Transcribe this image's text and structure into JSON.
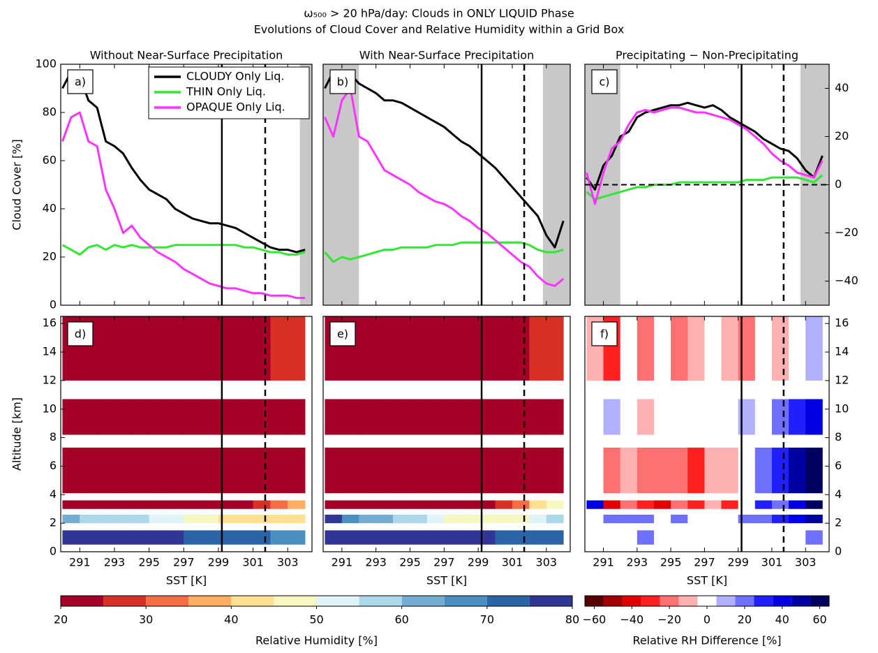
{
  "title": [
    "ω₅₀₀ > 20 hPa/day:  Clouds in ONLY LIQUID Phase",
    "Evolutions of Cloud Cover and Relative Humidity within a Grid Box"
  ],
  "chart_data": [
    {
      "type": "line",
      "panel": "a)",
      "title": "Without Near-Surface Precipitation",
      "ylabel": "Cloud Cover [%]",
      "x": [
        290,
        290.5,
        291,
        291.5,
        292,
        292.5,
        293,
        293.5,
        294,
        294.5,
        295,
        295.5,
        296,
        296.5,
        297,
        297.5,
        298,
        298.5,
        299,
        299.5,
        300,
        300.5,
        301,
        301.5,
        302,
        302.5,
        303,
        303.5,
        304
      ],
      "xlim": [
        289.9,
        304.4
      ],
      "xticks": [
        291,
        293,
        295,
        297,
        299,
        301,
        303
      ],
      "ylim": [
        0,
        100
      ],
      "yticks": [
        0,
        20,
        40,
        60,
        80,
        100
      ],
      "series": [
        {
          "name": "CLOUDY Only Liq.",
          "color": "#000000",
          "values": [
            90,
            97,
            95,
            85,
            82,
            68,
            66,
            63,
            57,
            52,
            48,
            46,
            44,
            40,
            38,
            36,
            35,
            34,
            34,
            33,
            32,
            30,
            28,
            26,
            24,
            23,
            23,
            22,
            23
          ]
        },
        {
          "name": "THIN Only Liq.",
          "color": "#33e633",
          "values": [
            25,
            23,
            21,
            24,
            25,
            23,
            25,
            24,
            25,
            24,
            24,
            24,
            24,
            25,
            25,
            25,
            25,
            25,
            25,
            25,
            25,
            24,
            24,
            23,
            22,
            22,
            21,
            21,
            22
          ]
        },
        {
          "name": "OPAQUE Only Liq.",
          "color": "#ff33ff",
          "values": [
            68,
            78,
            80,
            68,
            66,
            48,
            40,
            30,
            33,
            28,
            25,
            22,
            20,
            18,
            15,
            13,
            11,
            9,
            8,
            7,
            7,
            6,
            5,
            5,
            4,
            4,
            4,
            3,
            3
          ]
        }
      ],
      "vlines": [
        {
          "x": 299.2,
          "style": "solid"
        },
        {
          "x": 301.7,
          "style": "dashed"
        }
      ],
      "shaded": [
        [
          303.7,
          304.4
        ]
      ],
      "legend": "upper right"
    },
    {
      "type": "line",
      "panel": "b)",
      "title": "With Near-Surface Precipitation",
      "x": [
        290,
        290.5,
        291,
        291.5,
        292,
        292.5,
        293,
        293.5,
        294,
        294.5,
        295,
        295.5,
        296,
        296.5,
        297,
        297.5,
        298,
        298.5,
        299,
        299.5,
        300,
        300.5,
        301,
        301.5,
        302,
        302.5,
        303,
        303.5,
        304
      ],
      "xlim": [
        289.9,
        304.4
      ],
      "xticks": [
        291,
        293,
        295,
        297,
        299,
        301,
        303
      ],
      "ylim": [
        0,
        100
      ],
      "series": [
        {
          "color": "#000000",
          "values": [
            90,
            97,
            97,
            96,
            92,
            90,
            88,
            85,
            85,
            84,
            82,
            80,
            78,
            76,
            74,
            71,
            68,
            66,
            63,
            60,
            57,
            53,
            49,
            45,
            41,
            37,
            29,
            24,
            35
          ]
        },
        {
          "color": "#33e633",
          "values": [
            22,
            18,
            20,
            19,
            20,
            21,
            22,
            23,
            23,
            24,
            24,
            24,
            24,
            25,
            25,
            25,
            26,
            26,
            26,
            26,
            26,
            26,
            26,
            26,
            25,
            23,
            22,
            22,
            23
          ]
        },
        {
          "color": "#ff33ff",
          "values": [
            78,
            70,
            85,
            90,
            70,
            68,
            62,
            56,
            54,
            52,
            50,
            47,
            45,
            43,
            42,
            40,
            37,
            35,
            32,
            30,
            27,
            24,
            21,
            18,
            16,
            12,
            9,
            8,
            11
          ]
        }
      ],
      "vlines": [
        {
          "x": 299.2,
          "style": "solid"
        },
        {
          "x": 301.7,
          "style": "dashed"
        }
      ],
      "shaded": [
        [
          289.9,
          292
        ],
        [
          302.8,
          304.4
        ]
      ]
    },
    {
      "type": "line",
      "panel": "c)",
      "title": "Precipitating − Non-Precipitating",
      "x": [
        290,
        290.5,
        291,
        291.5,
        292,
        292.5,
        293,
        293.5,
        294,
        294.5,
        295,
        295.5,
        296,
        296.5,
        297,
        297.5,
        298,
        298.5,
        299,
        299.5,
        300,
        300.5,
        301,
        301.5,
        302,
        302.5,
        303,
        303.5,
        304
      ],
      "xlim": [
        289.9,
        304.4
      ],
      "xticks": [
        291,
        293,
        295,
        297,
        299,
        301,
        303
      ],
      "y2lim": [
        -50,
        50
      ],
      "y2ticks": [
        {
          "value": -40,
          "label": "−40"
        },
        {
          "value": -20,
          "label": "−20"
        },
        0,
        20,
        40
      ],
      "series": [
        {
          "color": "#000000",
          "axis": "y2",
          "values": [
            3,
            -2,
            8,
            12,
            20,
            22,
            28,
            30,
            31,
            32,
            33,
            33,
            34,
            33,
            32,
            33,
            31,
            28,
            26,
            24,
            22,
            19,
            17,
            15,
            14,
            11,
            6,
            3,
            12
          ]
        },
        {
          "color": "#33e633",
          "axis": "y2",
          "values": [
            -3,
            -6,
            -5,
            -4,
            -3,
            -2,
            -1,
            -1,
            0,
            0,
            0,
            1,
            1,
            1,
            1,
            1,
            1,
            1,
            1,
            2,
            2,
            2,
            3,
            3,
            3,
            3,
            2,
            1,
            4
          ]
        },
        {
          "color": "#ff33ff",
          "axis": "y2",
          "values": [
            5,
            -8,
            5,
            15,
            18,
            25,
            30,
            31,
            30,
            31,
            32,
            32,
            31,
            30,
            30,
            29,
            28,
            27,
            25,
            23,
            20,
            17,
            13,
            10,
            8,
            5,
            4,
            3,
            10
          ]
        }
      ],
      "vlines": [
        {
          "x": 299.2,
          "style": "solid"
        },
        {
          "x": 301.7,
          "style": "dashed"
        }
      ],
      "shaded": [
        [
          289.9,
          292
        ],
        [
          302.7,
          304.4
        ]
      ],
      "hline": 0
    },
    {
      "type": "heatmap",
      "panel": "d)",
      "xlabel": "SST [K]",
      "ylabel": "Altitude [km]",
      "colorbar": 0,
      "xlim": [
        289.9,
        304.4
      ],
      "xticks": [
        291,
        293,
        295,
        297,
        299,
        301,
        303
      ],
      "ylim": [
        0,
        16.5
      ],
      "yticks": [
        0,
        2,
        4,
        6,
        8,
        10,
        12,
        14,
        16
      ],
      "x_edges": [
        290,
        291,
        292,
        293,
        294,
        295,
        296,
        297,
        298,
        299,
        300,
        301,
        302,
        303,
        304
      ],
      "rows": [
        {
          "bottom": 0.5,
          "top": 1.5,
          "values": [
            78,
            78,
            78,
            78,
            78,
            78,
            78,
            73,
            73,
            73,
            73,
            73,
            67,
            67
          ]
        },
        {
          "bottom": 2,
          "top": 2.6,
          "values": [
            62,
            58,
            57,
            55,
            55,
            52,
            50,
            47,
            45,
            44,
            43,
            42,
            42,
            40
          ]
        },
        {
          "bottom": 3,
          "top": 3.6,
          "values": [
            20,
            20,
            20,
            20,
            20,
            20,
            20,
            20,
            20,
            20,
            20,
            28,
            33,
            37
          ]
        },
        {
          "bottom": 4.1,
          "top": 7.3,
          "values": [
            20,
            20,
            20,
            20,
            20,
            20,
            20,
            20,
            20,
            20,
            20,
            20,
            20,
            20
          ]
        },
        {
          "bottom": 8.2,
          "top": 10.7,
          "values": [
            20,
            20,
            20,
            20,
            20,
            20,
            20,
            20,
            20,
            20,
            20,
            20,
            20,
            20
          ]
        },
        {
          "bottom": 12,
          "top": 16.5,
          "values": [
            20,
            20,
            20,
            20,
            20,
            20,
            20,
            20,
            20,
            20,
            20,
            20,
            26,
            26
          ]
        }
      ],
      "vlines": [
        {
          "x": 299.2,
          "style": "solid"
        },
        {
          "x": 301.7,
          "style": "dashed"
        }
      ]
    },
    {
      "type": "heatmap",
      "panel": "e)",
      "xlabel": "SST [K]",
      "colorbar": 0,
      "xlim": [
        289.9,
        304.4
      ],
      "xticks": [
        291,
        293,
        295,
        297,
        299,
        301,
        303
      ],
      "ylim": [
        0,
        16.5
      ],
      "x_edges": [
        290,
        291,
        292,
        293,
        294,
        295,
        296,
        297,
        298,
        299,
        300,
        301,
        302,
        303,
        304
      ],
      "rows": [
        {
          "bottom": 0.5,
          "top": 1.5,
          "values": [
            78,
            78,
            78,
            78,
            78,
            78,
            78,
            78,
            78,
            78,
            73,
            73,
            73,
            73
          ]
        },
        {
          "bottom": 2,
          "top": 2.6,
          "values": [
            75,
            65,
            63,
            62,
            58,
            55,
            52,
            48,
            47,
            45,
            45,
            45,
            50,
            58
          ]
        },
        {
          "bottom": 3,
          "top": 3.6,
          "values": [
            20,
            20,
            20,
            20,
            20,
            20,
            20,
            20,
            20,
            20,
            28,
            30,
            40,
            47
          ]
        },
        {
          "bottom": 4.1,
          "top": 7.3,
          "values": [
            20,
            20,
            20,
            20,
            20,
            20,
            20,
            20,
            20,
            20,
            20,
            20,
            20,
            20
          ]
        },
        {
          "bottom": 8.2,
          "top": 10.7,
          "values": [
            20,
            20,
            20,
            20,
            20,
            20,
            20,
            20,
            20,
            20,
            20,
            20,
            20,
            20
          ]
        },
        {
          "bottom": 12,
          "top": 16.5,
          "values": [
            20,
            20,
            20,
            20,
            20,
            20,
            20,
            20,
            20,
            20,
            20,
            20,
            25,
            25
          ]
        }
      ],
      "vlines": [
        {
          "x": 299.2,
          "style": "solid"
        },
        {
          "x": 301.7,
          "style": "dashed"
        }
      ]
    },
    {
      "type": "heatmap",
      "panel": "f)",
      "xlabel": "SST [K]",
      "colorbar": 1,
      "xlim": [
        289.9,
        304.4
      ],
      "xticks": [
        291,
        293,
        295,
        297,
        299,
        301,
        303
      ],
      "y2lim": [
        0,
        16.5
      ],
      "y2ticks": [
        0,
        2,
        4,
        6,
        8,
        10,
        12,
        14,
        16
      ],
      "x_edges": [
        290,
        291,
        292,
        293,
        294,
        295,
        296,
        297,
        298,
        299,
        300,
        301,
        302,
        303,
        304
      ],
      "rows": [
        {
          "bottom": 0.5,
          "top": 1.5,
          "values": [
            0,
            0,
            0,
            15,
            0,
            0,
            0,
            0,
            0,
            0,
            0,
            0,
            0,
            15
          ]
        },
        {
          "bottom": 2,
          "top": 2.6,
          "values": [
            0,
            20,
            20,
            20,
            0,
            20,
            0,
            0,
            0,
            20,
            20,
            30,
            40,
            50
          ]
        },
        {
          "bottom": 3,
          "top": 3.6,
          "values": [
            40,
            -40,
            -20,
            -30,
            -40,
            -20,
            -30,
            -10,
            -30,
            0,
            30,
            20,
            40,
            60
          ]
        },
        {
          "bottom": 4.1,
          "top": 7.3,
          "values": [
            0,
            -20,
            -10,
            -25,
            -20,
            -25,
            -30,
            -15,
            -10,
            0,
            20,
            30,
            45,
            55
          ]
        },
        {
          "bottom": 8.2,
          "top": 10.7,
          "values": [
            -5,
            10,
            0,
            -10,
            0,
            -5,
            0,
            -5,
            0,
            10,
            0,
            20,
            30,
            40
          ]
        },
        {
          "bottom": 12,
          "top": 16.5,
          "values": [
            -10,
            -30,
            0,
            -20,
            0,
            -20,
            -15,
            0,
            -15,
            -20,
            0,
            -10,
            0,
            10
          ]
        }
      ],
      "vlines": [
        {
          "x": 299.2,
          "style": "solid"
        },
        {
          "x": 301.7,
          "style": "dashed"
        }
      ]
    }
  ],
  "colorbars": [
    {
      "label": "Relative Humidity [%]",
      "bounds": [
        20,
        25,
        30,
        35,
        40,
        45,
        50,
        55,
        60,
        65,
        70,
        75,
        80
      ],
      "colors": [
        "#a50026",
        "#d73027",
        "#f46d43",
        "#fdae61",
        "#fee090",
        "#f7f7c0",
        "#e0f3f8",
        "#abd9e9",
        "#74add1",
        "#4a8fc2",
        "#2c64a8",
        "#313695"
      ],
      "ticks": [
        20,
        30,
        40,
        50,
        60,
        70,
        80
      ]
    },
    {
      "label": "Relative RH Difference [%]",
      "bounds": [
        -65,
        -55,
        -45,
        -35,
        -25,
        -15,
        -5,
        5,
        15,
        25,
        35,
        45,
        55,
        65
      ],
      "colors": [
        "#5a0000",
        "#a00000",
        "#e00000",
        "#ff2020",
        "#ff7070",
        "#ffb0b0",
        "#ffffff",
        "#b0b0ff",
        "#7070ff",
        "#2020ff",
        "#0000e0",
        "#0000a0",
        "#000060"
      ],
      "ticks": [
        {
          "value": -60,
          "label": "−60"
        },
        {
          "value": -40,
          "label": "−40"
        },
        {
          "value": -20,
          "label": "−20"
        },
        0,
        20,
        40,
        60
      ]
    }
  ]
}
